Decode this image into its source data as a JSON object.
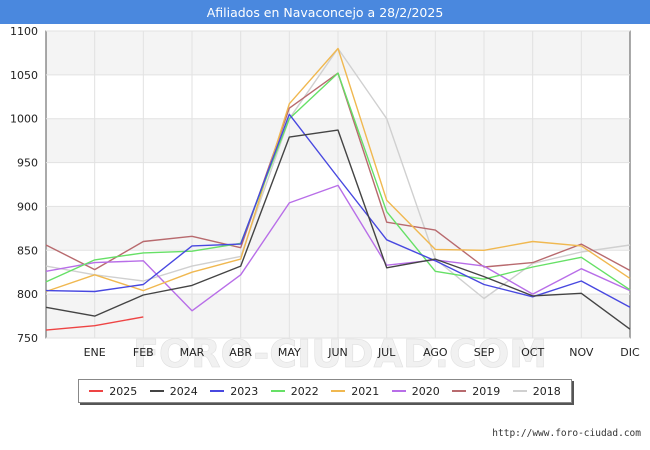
{
  "header": {
    "title": "Afiliados en Navaconcejo a 28/2/2025"
  },
  "footer": {
    "source": "http://www.foro-ciudad.com"
  },
  "chart_data": {
    "type": "line",
    "title": "Afiliados en Navaconcejo a 28/2/2025",
    "categories": [
      "",
      "ENE",
      "FEB",
      "MAR",
      "ABR",
      "MAY",
      "JUN",
      "JUL",
      "AGO",
      "SEP",
      "OCT",
      "NOV",
      "DIC"
    ],
    "ylim": [
      750,
      1100
    ],
    "yticks": [
      750,
      800,
      850,
      900,
      950,
      1000,
      1050,
      1100
    ],
    "grid": true,
    "legend_position": "bottom",
    "watermark": "FORO-CIUDAD.COM",
    "series": [
      {
        "name": "2018",
        "color": "#d0d0d0",
        "values": [
          832,
          822,
          815,
          832,
          843,
          1000,
          1080,
          1000,
          840,
          795,
          835,
          848,
          856
        ]
      },
      {
        "name": "2019",
        "color": "#b86a6e",
        "values": [
          856,
          828,
          860,
          866,
          853,
          1012,
          1052,
          882,
          873,
          831,
          836,
          857,
          827
        ]
      },
      {
        "name": "2020",
        "color": "#b86ee8",
        "values": [
          826,
          836,
          838,
          781,
          822,
          904,
          924,
          833,
          839,
          832,
          800,
          829,
          804
        ]
      },
      {
        "name": "2021",
        "color": "#f0b850",
        "values": [
          803,
          822,
          804,
          825,
          840,
          1017,
          1080,
          907,
          851,
          850,
          860,
          855,
          818
        ]
      },
      {
        "name": "2022",
        "color": "#66e066",
        "values": [
          814,
          839,
          847,
          849,
          858,
          1000,
          1052,
          894,
          826,
          817,
          831,
          842,
          805
        ]
      },
      {
        "name": "2023",
        "color": "#4848e0",
        "values": [
          804,
          803,
          811,
          855,
          857,
          1005,
          933,
          862,
          838,
          811,
          797,
          815,
          785
        ]
      },
      {
        "name": "2024",
        "color": "#444444",
        "values": [
          785,
          775,
          799,
          810,
          832,
          979,
          987,
          830,
          840,
          820,
          798,
          801,
          760
        ]
      },
      {
        "name": "2025",
        "color": "#ee4444",
        "values": [
          759,
          764,
          774,
          null,
          null,
          null,
          null,
          null,
          null,
          null,
          null,
          null,
          null
        ]
      }
    ],
    "legend_order": [
      "2025",
      "2024",
      "2023",
      "2022",
      "2021",
      "2020",
      "2019",
      "2018"
    ]
  }
}
